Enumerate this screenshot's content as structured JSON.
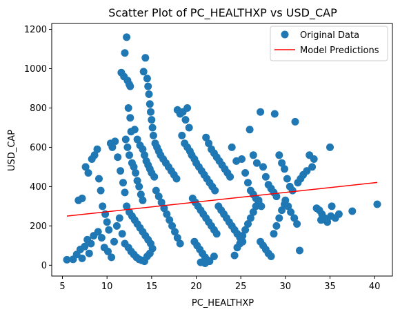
{
  "chart_data": {
    "type": "scatter",
    "title": "Scatter Plot of PC_HEALTHXP vs USD_CAP",
    "xlabel": "PC_HEALTHXP",
    "ylabel": "USD_CAP",
    "xlim": [
      3.8,
      42
    ],
    "ylim": [
      -55,
      1230
    ],
    "xticks": [
      "5",
      "10",
      "15",
      "20",
      "25",
      "30",
      "35",
      "40"
    ],
    "yticks": [
      "0",
      "200",
      "400",
      "600",
      "800",
      "1000",
      "1200"
    ],
    "grid": false,
    "legend_position": "top-right",
    "colors": {
      "points": "#1f77b4",
      "line": "#ff0000"
    },
    "series": [
      {
        "name": "Original Data",
        "kind": "scatter",
        "points": [
          [
            5.5,
            28
          ],
          [
            6.2,
            30
          ],
          [
            6.6,
            55
          ],
          [
            7.0,
            80
          ],
          [
            7.2,
            35
          ],
          [
            7.5,
            95
          ],
          [
            7.8,
            130
          ],
          [
            8.0,
            60
          ],
          [
            8.2,
            110
          ],
          [
            8.5,
            150
          ],
          [
            6.8,
            330
          ],
          [
            7.2,
            340
          ],
          [
            7.6,
            500
          ],
          [
            7.9,
            470
          ],
          [
            8.3,
            540
          ],
          [
            8.6,
            560
          ],
          [
            8.9,
            590
          ],
          [
            9.1,
            440
          ],
          [
            9.3,
            380
          ],
          [
            9.5,
            300
          ],
          [
            9.8,
            260
          ],
          [
            10.0,
            220
          ],
          [
            10.2,
            180
          ],
          [
            10.4,
            620
          ],
          [
            10.6,
            600
          ],
          [
            10.9,
            630
          ],
          [
            11.2,
            550
          ],
          [
            11.5,
            480
          ],
          [
            11.8,
            420
          ],
          [
            12.0,
            370
          ],
          [
            9.0,
            170
          ],
          [
            9.4,
            140
          ],
          [
            9.7,
            90
          ],
          [
            10.1,
            70
          ],
          [
            10.5,
            40
          ],
          [
            10.8,
            120
          ],
          [
            11.1,
            200
          ],
          [
            11.4,
            240
          ],
          [
            11.7,
            160
          ],
          [
            12.0,
            110
          ],
          [
            11.6,
            980
          ],
          [
            11.9,
            960
          ],
          [
            12.2,
            1160
          ],
          [
            12.0,
            1080
          ],
          [
            12.3,
            940
          ],
          [
            12.5,
            920
          ],
          [
            12.6,
            910
          ],
          [
            12.4,
            800
          ],
          [
            12.6,
            750
          ],
          [
            12.7,
            680
          ],
          [
            12.1,
            640
          ],
          [
            12.3,
            600
          ],
          [
            12.5,
            560
          ],
          [
            12.8,
            520
          ],
          [
            13.0,
            500
          ],
          [
            13.2,
            470
          ],
          [
            13.4,
            430
          ],
          [
            13.6,
            400
          ],
          [
            13.8,
            360
          ],
          [
            14.0,
            330
          ],
          [
            14.1,
            985
          ],
          [
            14.3,
            1055
          ],
          [
            14.5,
            950
          ],
          [
            14.6,
            910
          ],
          [
            14.7,
            870
          ],
          [
            14.8,
            820
          ],
          [
            14.9,
            780
          ],
          [
            15.0,
            740
          ],
          [
            15.1,
            700
          ],
          [
            15.2,
            660
          ],
          [
            13.1,
            690
          ],
          [
            13.4,
            640
          ],
          [
            13.7,
            610
          ],
          [
            14.0,
            590
          ],
          [
            14.2,
            560
          ],
          [
            14.4,
            530
          ],
          [
            14.6,
            510
          ],
          [
            14.8,
            490
          ],
          [
            15.0,
            470
          ],
          [
            15.3,
            450
          ],
          [
            12.2,
            300
          ],
          [
            12.5,
            270
          ],
          [
            12.8,
            250
          ],
          [
            13.1,
            230
          ],
          [
            13.4,
            210
          ],
          [
            13.7,
            190
          ],
          [
            14.0,
            170
          ],
          [
            14.3,
            150
          ],
          [
            14.6,
            130
          ],
          [
            14.9,
            110
          ],
          [
            12.4,
            90
          ],
          [
            12.7,
            70
          ],
          [
            13.0,
            55
          ],
          [
            13.3,
            40
          ],
          [
            13.6,
            30
          ],
          [
            13.9,
            25
          ],
          [
            14.2,
            20
          ],
          [
            14.5,
            45
          ],
          [
            14.8,
            60
          ],
          [
            15.1,
            85
          ],
          [
            15.4,
            620
          ],
          [
            15.6,
            600
          ],
          [
            15.8,
            580
          ],
          [
            16.0,
            560
          ],
          [
            16.3,
            540
          ],
          [
            16.6,
            520
          ],
          [
            16.9,
            500
          ],
          [
            17.2,
            480
          ],
          [
            17.5,
            460
          ],
          [
            17.8,
            440
          ],
          [
            15.5,
            380
          ],
          [
            15.8,
            350
          ],
          [
            16.1,
            320
          ],
          [
            16.4,
            290
          ],
          [
            16.7,
            260
          ],
          [
            17.0,
            230
          ],
          [
            17.3,
            200
          ],
          [
            17.6,
            170
          ],
          [
            17.9,
            140
          ],
          [
            18.2,
            110
          ],
          [
            17.9,
            790
          ],
          [
            18.2,
            770
          ],
          [
            18.5,
            780
          ],
          [
            18.8,
            740
          ],
          [
            19.0,
            800
          ],
          [
            19.2,
            700
          ],
          [
            18.4,
            660
          ],
          [
            18.7,
            620
          ],
          [
            19.0,
            600
          ],
          [
            19.3,
            580
          ],
          [
            19.5,
            560
          ],
          [
            19.8,
            540
          ],
          [
            20.0,
            520
          ],
          [
            20.3,
            500
          ],
          [
            20.6,
            480
          ],
          [
            20.9,
            460
          ],
          [
            21.2,
            440
          ],
          [
            21.5,
            420
          ],
          [
            21.8,
            400
          ],
          [
            22.1,
            380
          ],
          [
            19.6,
            340
          ],
          [
            19.9,
            320
          ],
          [
            20.2,
            300
          ],
          [
            20.5,
            280
          ],
          [
            20.8,
            260
          ],
          [
            21.1,
            240
          ],
          [
            21.4,
            220
          ],
          [
            21.7,
            200
          ],
          [
            22.0,
            180
          ],
          [
            22.3,
            160
          ],
          [
            19.8,
            120
          ],
          [
            20.1,
            100
          ],
          [
            20.4,
            80
          ],
          [
            20.7,
            60
          ],
          [
            21.0,
            40
          ],
          [
            21.3,
            25
          ],
          [
            20.5,
            15
          ],
          [
            21.0,
            10
          ],
          [
            21.5,
            20
          ],
          [
            22.0,
            45
          ],
          [
            21.1,
            650
          ],
          [
            21.4,
            620
          ],
          [
            21.7,
            590
          ],
          [
            22.0,
            570
          ],
          [
            22.3,
            550
          ],
          [
            22.6,
            530
          ],
          [
            22.9,
            510
          ],
          [
            23.2,
            490
          ],
          [
            23.5,
            470
          ],
          [
            23.8,
            450
          ],
          [
            22.5,
            300
          ],
          [
            22.8,
            280
          ],
          [
            23.1,
            260
          ],
          [
            23.4,
            240
          ],
          [
            23.7,
            220
          ],
          [
            24.0,
            200
          ],
          [
            24.3,
            180
          ],
          [
            24.6,
            160
          ],
          [
            24.9,
            140
          ],
          [
            25.2,
            120
          ],
          [
            24.0,
            600
          ],
          [
            24.5,
            530
          ],
          [
            25.1,
            540
          ],
          [
            25.5,
            470
          ],
          [
            25.8,
            420
          ],
          [
            26.1,
            380
          ],
          [
            26.4,
            360
          ],
          [
            26.7,
            340
          ],
          [
            27.0,
            320
          ],
          [
            27.3,
            300
          ],
          [
            26.0,
            690
          ],
          [
            26.4,
            560
          ],
          [
            26.8,
            520
          ],
          [
            27.2,
            780
          ],
          [
            27.5,
            500
          ],
          [
            27.8,
            450
          ],
          [
            28.1,
            410
          ],
          [
            28.4,
            390
          ],
          [
            28.7,
            370
          ],
          [
            29.0,
            350
          ],
          [
            24.3,
            50
          ],
          [
            24.6,
            90
          ],
          [
            24.9,
            110
          ],
          [
            25.2,
            150
          ],
          [
            25.5,
            180
          ],
          [
            25.8,
            210
          ],
          [
            26.1,
            240
          ],
          [
            26.4,
            270
          ],
          [
            26.7,
            300
          ],
          [
            27.0,
            330
          ],
          [
            27.2,
            120
          ],
          [
            27.5,
            100
          ],
          [
            27.8,
            80
          ],
          [
            28.1,
            60
          ],
          [
            28.4,
            45
          ],
          [
            28.7,
            160
          ],
          [
            29.0,
            200
          ],
          [
            29.3,
            240
          ],
          [
            29.6,
            280
          ],
          [
            29.9,
            310
          ],
          [
            28.8,
            770
          ],
          [
            29.3,
            560
          ],
          [
            29.6,
            520
          ],
          [
            29.9,
            490
          ],
          [
            30.2,
            440
          ],
          [
            30.5,
            400
          ],
          [
            30.8,
            380
          ],
          [
            31.1,
            730
          ],
          [
            31.4,
            420
          ],
          [
            31.7,
            440
          ],
          [
            30.0,
            330
          ],
          [
            30.3,
            300
          ],
          [
            30.6,
            270
          ],
          [
            31.0,
            240
          ],
          [
            31.3,
            210
          ],
          [
            31.6,
            75
          ],
          [
            32.0,
            460
          ],
          [
            32.4,
            480
          ],
          [
            32.7,
            560
          ],
          [
            33.0,
            500
          ],
          [
            33.2,
            540
          ],
          [
            33.5,
            290
          ],
          [
            33.8,
            280
          ],
          [
            34.1,
            260
          ],
          [
            34.4,
            240
          ],
          [
            34.7,
            220
          ],
          [
            35.0,
            600
          ],
          [
            35.2,
            300
          ],
          [
            35.6,
            240
          ],
          [
            36.0,
            260
          ],
          [
            37.5,
            275
          ],
          [
            40.3,
            310
          ],
          [
            34.0,
            230
          ],
          [
            35.1,
            250
          ]
        ]
      },
      {
        "name": "Model Predictions",
        "kind": "line",
        "points": [
          [
            5.5,
            250
          ],
          [
            40.3,
            421
          ]
        ]
      }
    ]
  }
}
